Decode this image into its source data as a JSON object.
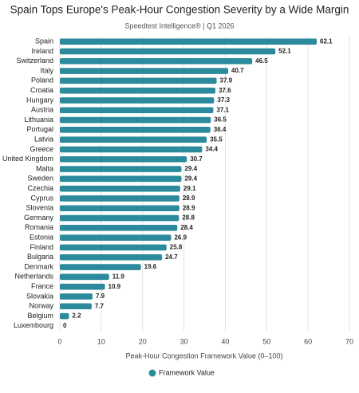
{
  "chart_data": {
    "type": "bar",
    "orientation": "horizontal",
    "title": "Spain Tops Europe's Peak-Hour Congestion Severity by a Wide Margin",
    "subtitle": "Speedtest Intelligence® | Q1 2026",
    "x_label": "Peak-Hour Congestion Framework Value (0–100)",
    "categories": [
      "Spain",
      "Ireland",
      "Switzerland",
      "Italy",
      "Poland",
      "Croatia",
      "Hungary",
      "Austria",
      "Lithuania",
      "Portugal",
      "Latvia",
      "Greece",
      "United Kingdom",
      "Malta",
      "Sweden",
      "Czechia",
      "Cyprus",
      "Slovenia",
      "Germany",
      "Romania",
      "Estonia",
      "Finland",
      "Bulgaria",
      "Denmark",
      "Netherlands",
      "France",
      "Slovakia",
      "Norway",
      "Belgium",
      "Luxembourg"
    ],
    "series": [
      {
        "name": "Framework Value",
        "color": "#2b8a9b",
        "values": [
          62.1,
          52.1,
          46.5,
          40.7,
          37.9,
          37.6,
          37.3,
          37.1,
          36.5,
          36.4,
          35.5,
          34.4,
          30.7,
          29.4,
          29.4,
          29.1,
          28.9,
          28.9,
          28.8,
          28.4,
          26.9,
          25.8,
          24.7,
          19.6,
          11.9,
          10.9,
          7.9,
          7.7,
          2.2,
          0
        ]
      }
    ],
    "xlim": [
      0,
      70
    ],
    "xticks": [
      0,
      10,
      20,
      30,
      40,
      50,
      60,
      70
    ],
    "grid": true,
    "legend": "bottom"
  }
}
